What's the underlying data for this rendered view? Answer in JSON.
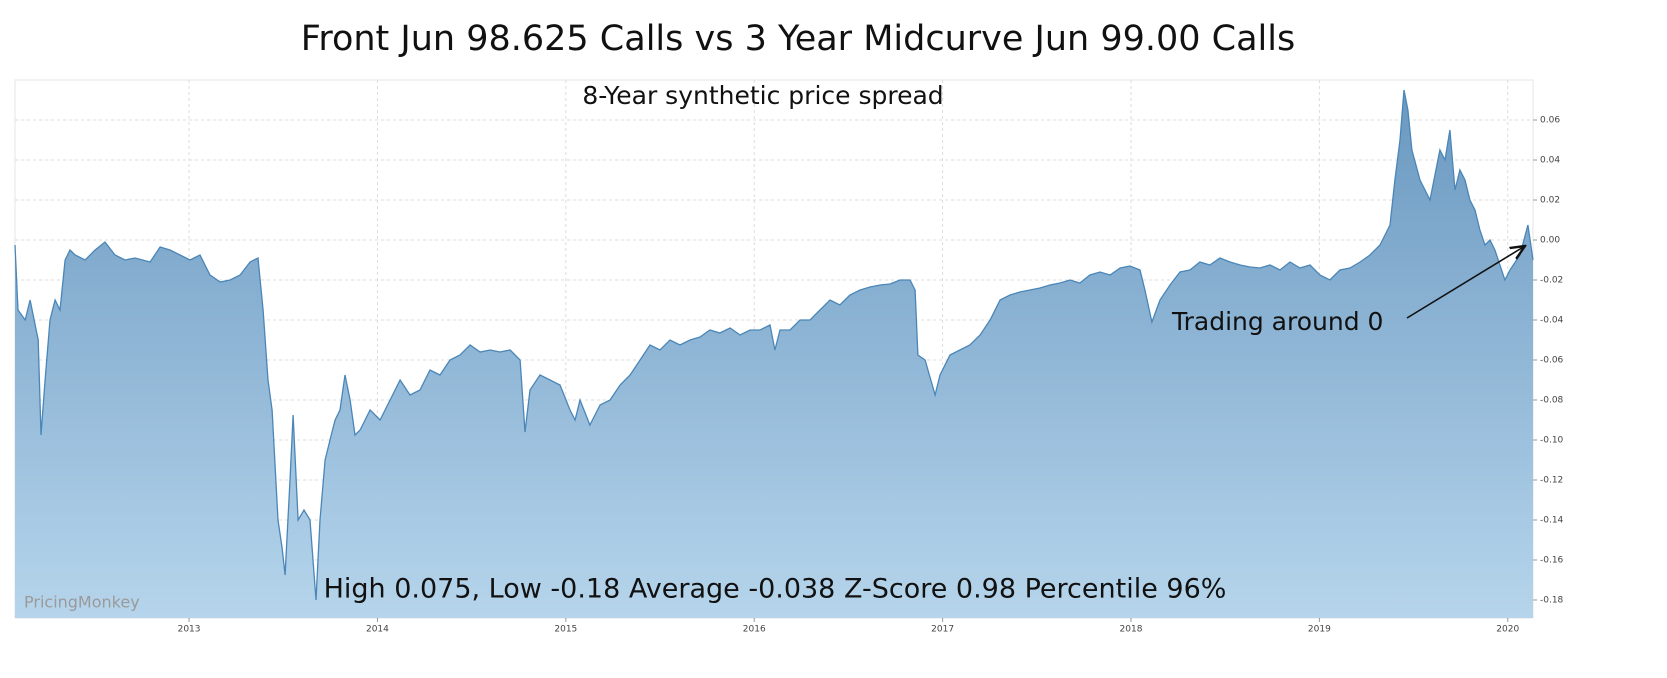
{
  "chart_data": {
    "type": "area",
    "title": "Front Jun 98.625 Calls vs 3 Year Midcurve Jun 99.00 Calls",
    "subtitle": "8-Year synthetic price spread",
    "annotations": [
      "Trading around 0",
      "High 0.075, Low -0.18 Average -0.038 Z-Score 0.98 Percentile 96%",
      "PricingMonkey"
    ],
    "color": "#4a86b8",
    "grid": true,
    "xlim": [
      2012.076,
      2020.134
    ],
    "xticks": [
      2013,
      2014,
      2015,
      2016,
      2017,
      2018,
      2019,
      2020
    ],
    "ylim": [
      -0.189,
      0.08
    ],
    "yticks": [
      0.06,
      0.04,
      0.02,
      {
        "value": 0,
        "label": "0.00"
      },
      -0.02,
      -0.04,
      -0.06,
      -0.08,
      {
        "value": -0.1,
        "label": "-0.10"
      },
      -0.12,
      -0.14,
      -0.16,
      -0.18
    ],
    "x": [
      2012.076,
      2012.092,
      2012.13,
      2012.156,
      2012.199,
      2012.214,
      2012.236,
      2012.262,
      2012.289,
      2012.315,
      2012.342,
      2012.368,
      2012.395,
      2012.448,
      2012.501,
      2012.554,
      2012.607,
      2012.66,
      2012.713,
      2012.793,
      2012.846,
      2012.899,
      2012.952,
      2013.005,
      2013.058,
      2013.111,
      2013.165,
      2013.218,
      2013.271,
      2013.324,
      2013.366,
      2013.393,
      2013.419,
      2013.441,
      2013.472,
      2013.494,
      2013.51,
      2013.536,
      2013.552,
      2013.579,
      2013.61,
      2013.642,
      2013.674,
      2013.695,
      2013.722,
      2013.748,
      2013.775,
      2013.801,
      2013.828,
      2013.855,
      2013.881,
      2013.908,
      2013.961,
      2014.014,
      2014.067,
      2014.12,
      2014.173,
      2014.226,
      2014.279,
      2014.332,
      2014.385,
      2014.438,
      2014.492,
      2014.545,
      2014.598,
      2014.651,
      2014.704,
      2014.757,
      2014.783,
      2014.81,
      2014.863,
      2014.916,
      2014.969,
      2015.022,
      2015.049,
      2015.075,
      2015.128,
      2015.182,
      2015.235,
      2015.288,
      2015.341,
      2015.394,
      2015.447,
      2015.5,
      2015.553,
      2015.606,
      2015.659,
      2015.712,
      2015.765,
      2015.818,
      2015.872,
      2015.925,
      2015.978,
      2016.031,
      2016.084,
      2016.11,
      2016.137,
      2016.19,
      2016.243,
      2016.296,
      2016.349,
      2016.402,
      2016.455,
      2016.508,
      2016.562,
      2016.615,
      2016.668,
      2016.721,
      2016.774,
      2016.827,
      2016.854,
      2016.869,
      2016.907,
      2016.96,
      2016.986,
      2017.039,
      2017.092,
      2017.145,
      2017.199,
      2017.252,
      2017.305,
      2017.358,
      2017.411,
      2017.464,
      2017.517,
      2017.57,
      2017.623,
      2017.676,
      2017.729,
      2017.782,
      2017.835,
      2017.889,
      2017.942,
      2017.995,
      2018.048,
      2018.074,
      2018.111,
      2018.154,
      2018.207,
      2018.26,
      2018.313,
      2018.366,
      2018.419,
      2018.472,
      2018.526,
      2018.579,
      2018.632,
      2018.685,
      2018.738,
      2018.791,
      2018.844,
      2018.897,
      2018.95,
      2019.003,
      2019.056,
      2019.109,
      2019.162,
      2019.216,
      2019.269,
      2019.322,
      2019.375,
      2019.401,
      2019.428,
      2019.449,
      2019.47,
      2019.491,
      2019.534,
      2019.587,
      2019.64,
      2019.667,
      2019.693,
      2019.72,
      2019.746,
      2019.773,
      2019.799,
      2019.826,
      2019.852,
      2019.879,
      2019.906,
      2019.932,
      2019.985,
      2020.012,
      2020.065,
      2020.107,
      2020.134
    ],
    "values": [
      -0.0025,
      -0.035,
      -0.04,
      -0.03,
      -0.05,
      -0.0975,
      -0.07,
      -0.04,
      -0.03,
      -0.035,
      -0.01,
      -0.005,
      -0.0075,
      -0.01,
      -0.005,
      -0.001,
      -0.0075,
      -0.01,
      -0.009,
      -0.011,
      -0.0035,
      -0.005,
      -0.0075,
      -0.01,
      -0.0075,
      -0.0175,
      -0.021,
      -0.02,
      -0.0175,
      -0.011,
      -0.009,
      -0.035,
      -0.07,
      -0.085,
      -0.14,
      -0.154,
      -0.1675,
      -0.12,
      -0.0875,
      -0.14,
      -0.135,
      -0.14,
      -0.18,
      -0.14,
      -0.11,
      -0.1,
      -0.09,
      -0.085,
      -0.0675,
      -0.08,
      -0.0975,
      -0.095,
      -0.085,
      -0.09,
      -0.08,
      -0.07,
      -0.0775,
      -0.075,
      -0.065,
      -0.0675,
      -0.06,
      -0.0575,
      -0.0525,
      -0.056,
      -0.055,
      -0.056,
      -0.055,
      -0.06,
      -0.096,
      -0.075,
      -0.0675,
      -0.07,
      -0.0725,
      -0.085,
      -0.09,
      -0.08,
      -0.0925,
      -0.0825,
      -0.08,
      -0.0725,
      -0.0675,
      -0.06,
      -0.0525,
      -0.055,
      -0.05,
      -0.0525,
      -0.05,
      -0.0485,
      -0.045,
      -0.0465,
      -0.044,
      -0.0475,
      -0.045,
      -0.045,
      -0.0425,
      -0.055,
      -0.045,
      -0.045,
      -0.04,
      -0.04,
      -0.035,
      -0.03,
      -0.0325,
      -0.0275,
      -0.025,
      -0.0235,
      -0.0225,
      -0.022,
      -0.02,
      -0.02,
      -0.025,
      -0.0575,
      -0.06,
      -0.0775,
      -0.0675,
      -0.0575,
      -0.055,
      -0.0525,
      -0.0475,
      -0.04,
      -0.03,
      -0.0275,
      -0.026,
      -0.025,
      -0.024,
      -0.0225,
      -0.0215,
      -0.02,
      -0.0215,
      -0.0175,
      -0.016,
      -0.0175,
      -0.014,
      -0.013,
      -0.015,
      -0.025,
      -0.041,
      -0.03,
      -0.0225,
      -0.016,
      -0.015,
      -0.011,
      -0.0125,
      -0.009,
      -0.011,
      -0.0125,
      -0.0135,
      -0.014,
      -0.0125,
      -0.015,
      -0.011,
      -0.014,
      -0.0125,
      -0.0175,
      -0.02,
      -0.015,
      -0.014,
      -0.011,
      -0.0075,
      -0.0025,
      0.0075,
      0.03,
      0.05,
      0.075,
      0.065,
      0.045,
      0.03,
      0.02,
      0.045,
      0.04,
      0.055,
      0.025,
      0.035,
      0.03,
      0.02,
      0.015,
      0.005,
      -0.0025,
      0,
      -0.005,
      -0.02,
      -0.015,
      -0.0075,
      0.0075,
      -0.01
    ]
  }
}
